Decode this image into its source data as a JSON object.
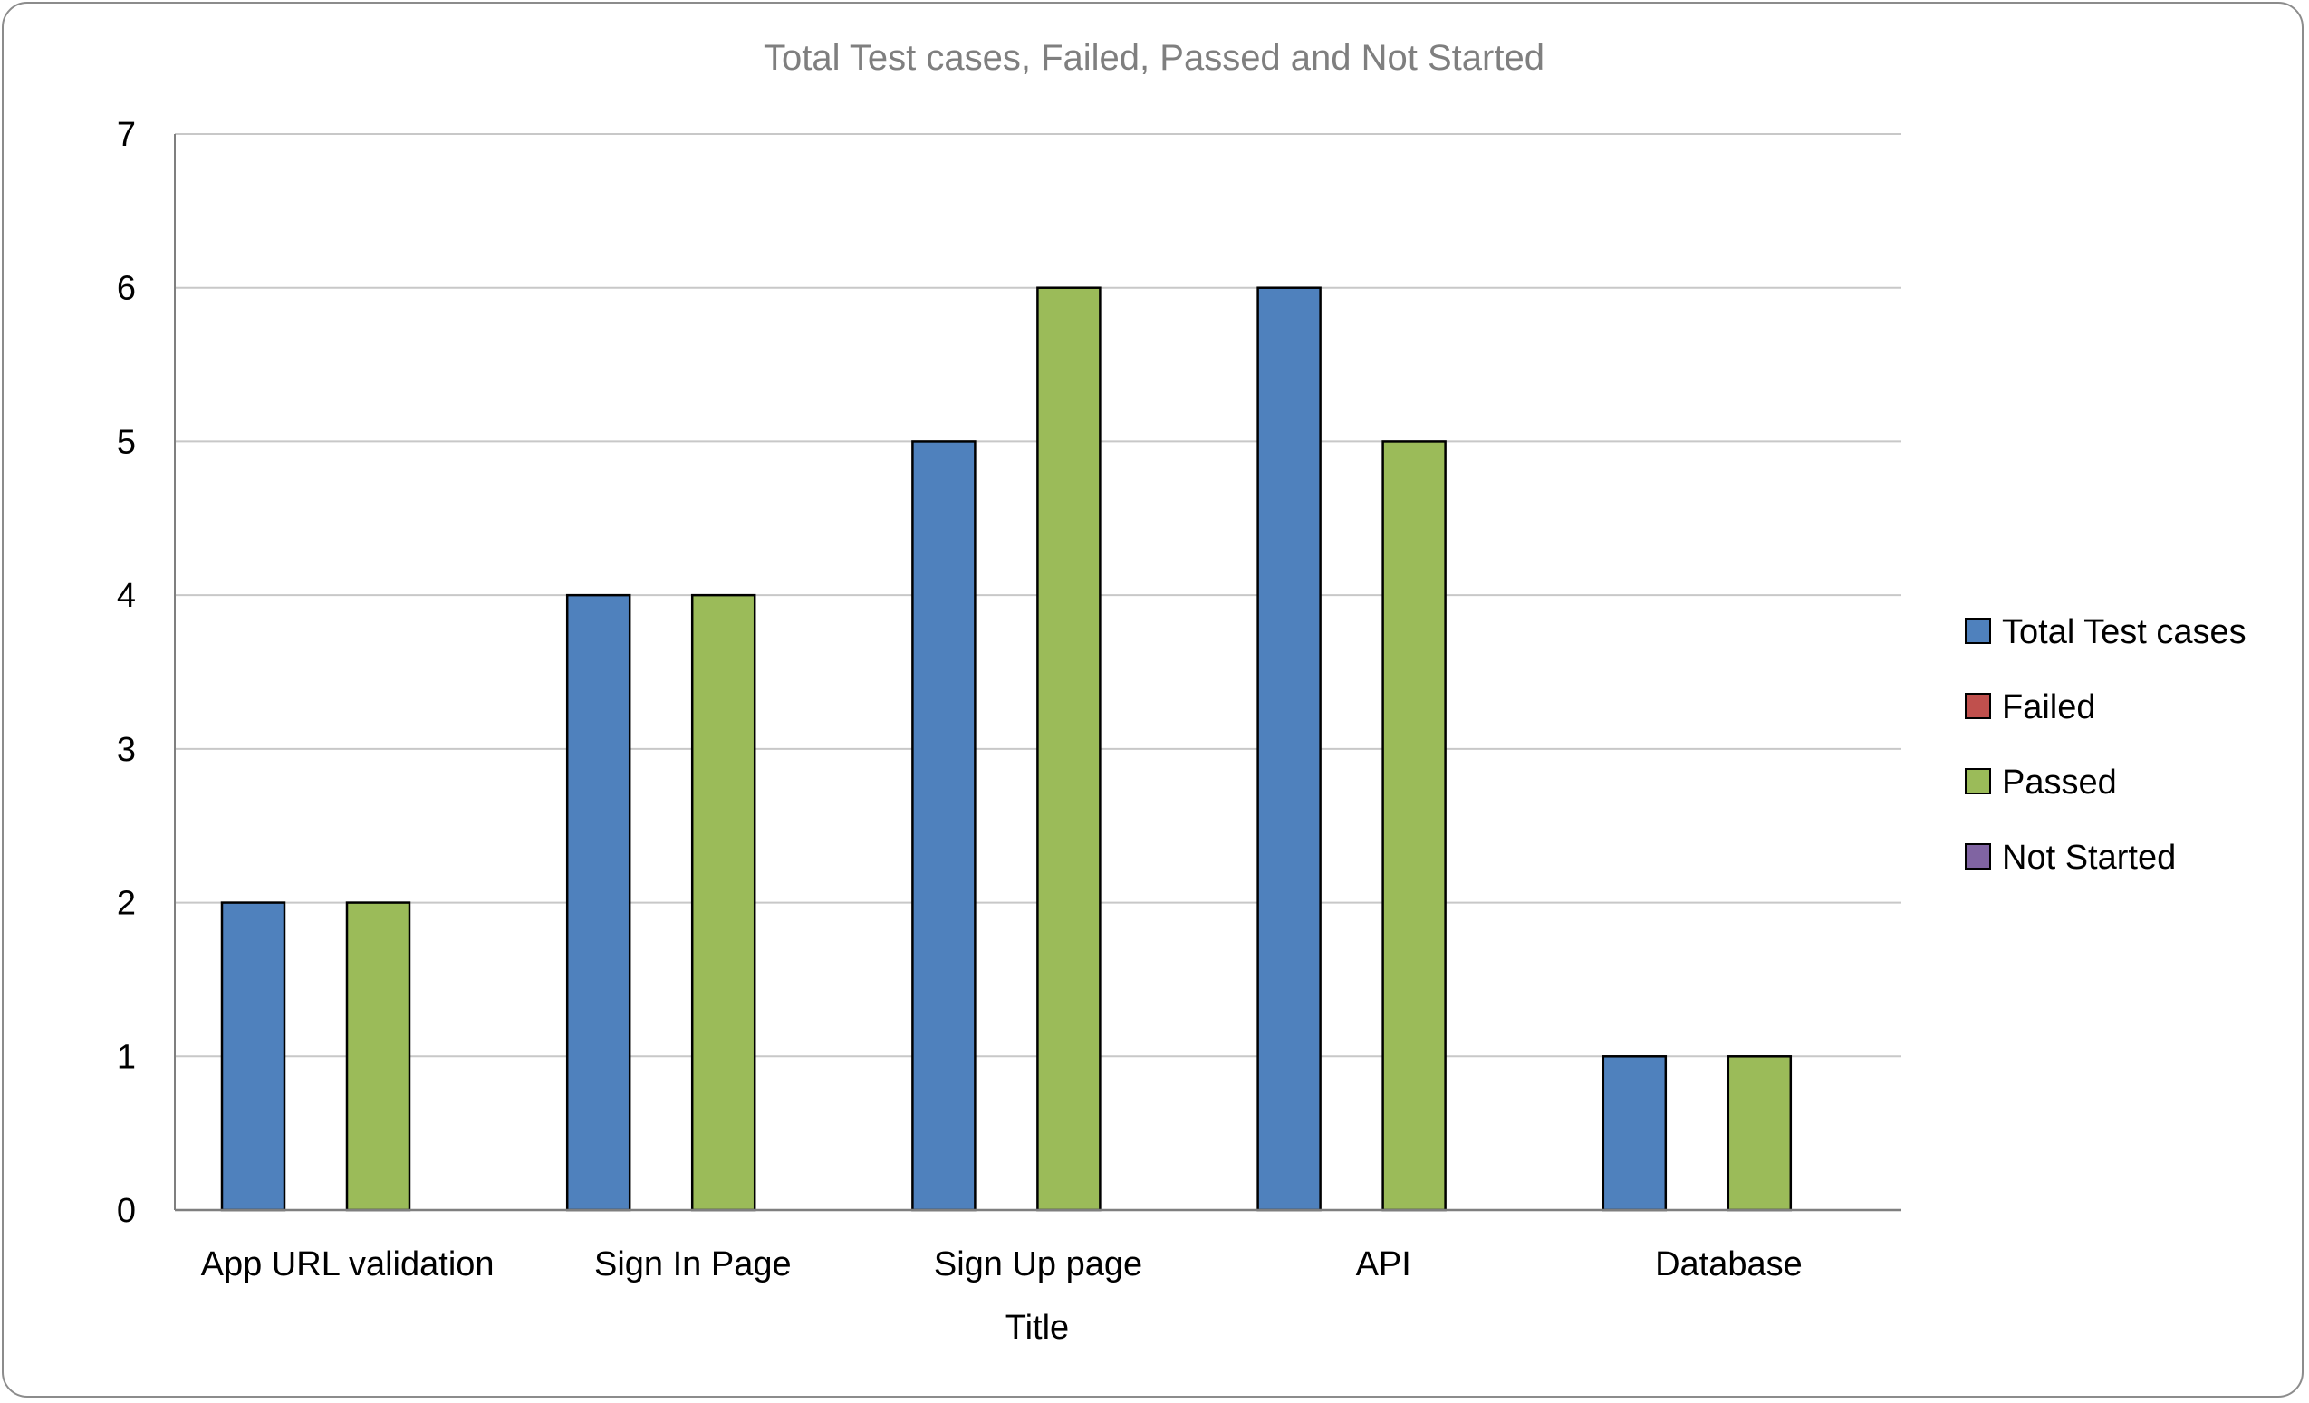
{
  "chart_data": {
    "type": "bar",
    "title": "Total Test cases, Failed, Passed and Not Started",
    "xlabel": "Title",
    "ylabel": "",
    "ylim": [
      0,
      7
    ],
    "yticks": [
      "0",
      "1",
      "2",
      "3",
      "4",
      "5",
      "6",
      "7"
    ],
    "grid": true,
    "legend_position": "right",
    "categories": [
      "App URL validation",
      "Sign In Page",
      "Sign Up page",
      "API",
      "Database"
    ],
    "series": [
      {
        "name": "Total Test cases",
        "color": "#4f81bd",
        "values": [
          2,
          4,
          5,
          6,
          1
        ]
      },
      {
        "name": "Failed",
        "color": "#c0504d",
        "values": [
          0,
          0,
          0,
          0,
          0
        ]
      },
      {
        "name": "Passed",
        "color": "#9bbb59",
        "values": [
          2,
          4,
          6,
          5,
          1
        ]
      },
      {
        "name": "Not Started",
        "color": "#8064a2",
        "values": [
          0,
          0,
          0,
          0,
          0
        ]
      }
    ]
  }
}
